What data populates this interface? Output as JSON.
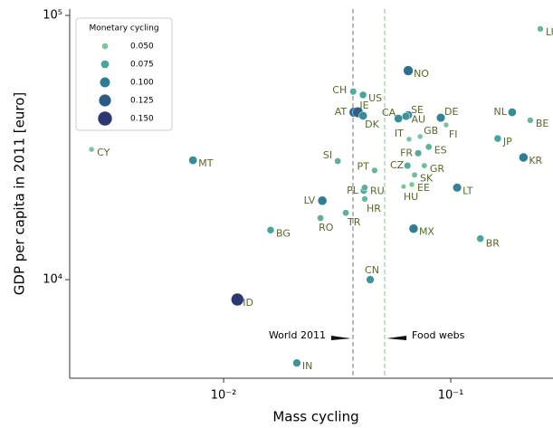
{
  "chart_data": {
    "type": "scatter",
    "xlabel": "Mass cycling",
    "ylabel": "GDP per capita in 2011 [euro]",
    "log_x": true,
    "log_y": true,
    "xlim": [
      0.0021,
      0.282
    ],
    "ylim": [
      4236,
      105700
    ],
    "xticks": [
      {
        "value": 0.01,
        "label": "10⁻²"
      },
      {
        "value": 0.1,
        "label": "10⁻¹"
      }
    ],
    "yticks": [
      {
        "value": 10000,
        "label": "10⁴"
      },
      {
        "value": 100000,
        "label": "10⁵"
      }
    ],
    "points": {
      "labels": [
        "LU",
        "NO",
        "CH",
        "US",
        "AT",
        "IE",
        "DK",
        "CA",
        "SE",
        "AU",
        "DE",
        "GB",
        "FI",
        "IT",
        "FR",
        "ES",
        "CZ",
        "GR",
        "SK",
        "EE",
        "HU",
        "NL",
        "BE",
        "JP",
        "KR",
        "LT",
        "MX",
        "BR",
        "CN",
        "SI",
        "PT",
        "PL",
        "RU",
        "HR",
        "LV",
        "TR",
        "RO",
        "BG",
        "CY",
        "MT",
        "ID",
        "IN"
      ],
      "x": [
        0.248,
        0.065,
        0.0372,
        0.0411,
        0.0375,
        0.039,
        0.0411,
        0.0588,
        0.065,
        0.0635,
        0.0904,
        0.0733,
        0.0954,
        0.0655,
        0.0719,
        0.08,
        0.0645,
        0.0765,
        0.0693,
        0.0674,
        0.062,
        0.1864,
        0.224,
        0.161,
        0.209,
        0.1067,
        0.0686,
        0.135,
        0.0442,
        0.0318,
        0.0462,
        0.0414,
        0.0418,
        0.0418,
        0.0272,
        0.0345,
        0.0267,
        0.0161,
        0.00262,
        0.00733,
        0.0115,
        0.021
      ],
      "y": [
        88900,
        61800,
        51500,
        50000,
        43000,
        43000,
        41700,
        40700,
        42000,
        41500,
        41000,
        34800,
        38500,
        34000,
        30100,
        31800,
        27000,
        27000,
        24900,
        22900,
        22500,
        43000,
        40100,
        34200,
        29000,
        22300,
        15600,
        14300,
        10000,
        28100,
        25900,
        21700,
        22300,
        20200,
        19900,
        17900,
        17100,
        15400,
        31100,
        28300,
        8410,
        4840
      ],
      "sizes": [
        0.06,
        0.11,
        0.07,
        0.075,
        0.11,
        0.12,
        0.09,
        0.09,
        0.09,
        0.085,
        0.095,
        0.05,
        0.05,
        0.05,
        0.07,
        0.065,
        0.07,
        0.055,
        0.055,
        0.05,
        0.045,
        0.09,
        0.06,
        0.075,
        0.1,
        0.095,
        0.1,
        0.075,
        0.085,
        0.065,
        0.06,
        0.07,
        0.065,
        0.06,
        0.1,
        0.065,
        0.065,
        0.075,
        0.05,
        0.09,
        0.15,
        0.085
      ]
    },
    "legend": {
      "title": "Monetary cycling",
      "entries": [
        {
          "value": 0.05,
          "label": "0.050",
          "color": "#7cc49a"
        },
        {
          "value": 0.075,
          "label": "0.075",
          "color": "#4aa39d"
        },
        {
          "value": 0.1,
          "label": "0.100",
          "color": "#2d7d93"
        },
        {
          "value": 0.125,
          "label": "0.125",
          "color": "#2b5a86"
        },
        {
          "value": 0.15,
          "label": "0.150",
          "color": "#2c3870"
        }
      ]
    },
    "vlines": [
      {
        "x": 0.0371,
        "label": "World 2011",
        "color": "#999999"
      },
      {
        "x": 0.0512,
        "label": "Food webs",
        "color": "#9fd4a6"
      }
    ]
  }
}
